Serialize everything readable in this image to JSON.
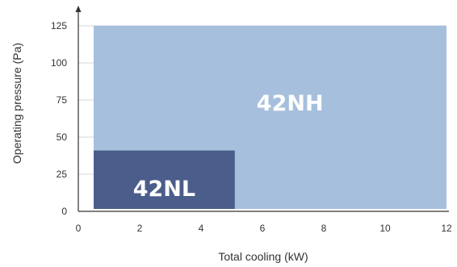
{
  "chart_data": {
    "type": "area",
    "xlabel": "Total cooling (kW)",
    "ylabel": "Operating pressure (Pa)",
    "xlim": [
      0,
      12
    ],
    "ylim": [
      0,
      125
    ],
    "x_ticks": [
      0,
      2,
      4,
      6,
      8,
      10,
      12
    ],
    "y_ticks": [
      0,
      25,
      50,
      75,
      100,
      125
    ],
    "grid": "horizontal",
    "regions": [
      {
        "name": "42NH",
        "x": [
          0.5,
          12
        ],
        "y": [
          0,
          125
        ],
        "color": "#a6bfdd"
      },
      {
        "name": "42NL",
        "x": [
          0.5,
          5.1
        ],
        "y": [
          0,
          41
        ],
        "color": "#4b5d8a"
      }
    ]
  }
}
